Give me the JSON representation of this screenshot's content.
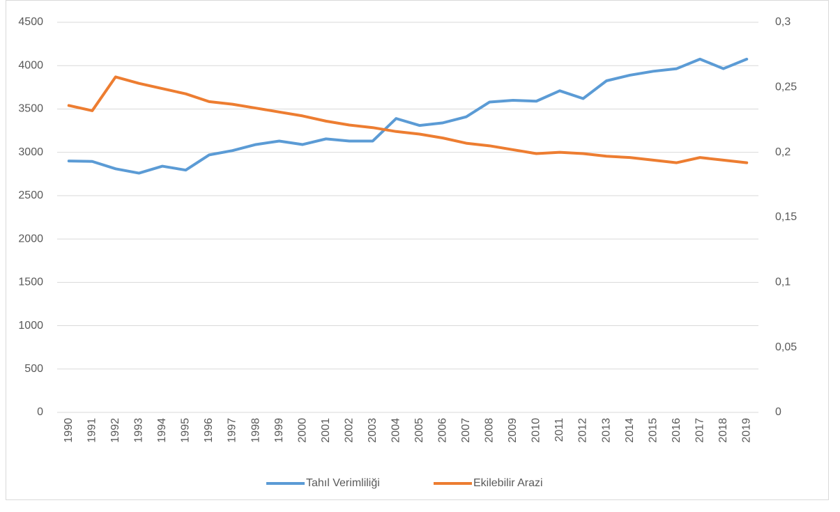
{
  "chart_data": {
    "type": "line",
    "categories": [
      "1990",
      "1991",
      "1992",
      "1993",
      "1994",
      "1995",
      "1996",
      "1997",
      "1998",
      "1999",
      "2000",
      "2001",
      "2002",
      "2003",
      "2004",
      "2005",
      "2006",
      "2007",
      "2008",
      "2009",
      "2010",
      "2011",
      "2012",
      "2013",
      "2014",
      "2015",
      "2016",
      "2017",
      "2018",
      "2019"
    ],
    "series": [
      {
        "name": "Tahıl Verimliliği",
        "color": "#5b9bd5",
        "values": [
          2900,
          2895,
          2810,
          2760,
          2840,
          2795,
          2970,
          3020,
          3090,
          3130,
          3090,
          3155,
          3130,
          3130,
          3390,
          3310,
          3340,
          3410,
          3580,
          3600,
          3590,
          3710,
          3620,
          3825,
          3890,
          3935,
          3965,
          4075,
          3965,
          4075
        ]
      },
      {
        "name": "Ekilebilir Arazi",
        "color": "#ed7d31",
        "axis": "y2",
        "values": [
          0.236,
          0.232,
          0.258,
          0.253,
          0.249,
          0.245,
          0.239,
          0.237,
          0.234,
          0.231,
          0.228,
          0.224,
          0.221,
          0.219,
          0.216,
          0.214,
          0.211,
          0.207,
          0.205,
          0.202,
          0.199,
          0.2,
          0.199,
          0.197,
          0.196,
          0.194,
          0.192,
          0.196,
          0.194,
          0.192
        ]
      }
    ],
    "ylim": [
      0,
      4500
    ],
    "yticks": [
      0,
      500,
      1000,
      1500,
      2000,
      2500,
      3000,
      3500,
      4000,
      4500
    ],
    "y2lim": [
      0,
      0.3
    ],
    "y2ticks": [
      0,
      {
        "value": 0.05,
        "label": "0,05"
      },
      {
        "value": 0.1,
        "label": "0,1"
      },
      {
        "value": 0.15,
        "label": "0,15"
      },
      {
        "value": 0.2,
        "label": "0,2"
      },
      {
        "value": 0.25,
        "label": "0,25"
      },
      {
        "value": 0.3,
        "label": "0,3"
      }
    ],
    "grid": true,
    "legend": "bottom"
  }
}
